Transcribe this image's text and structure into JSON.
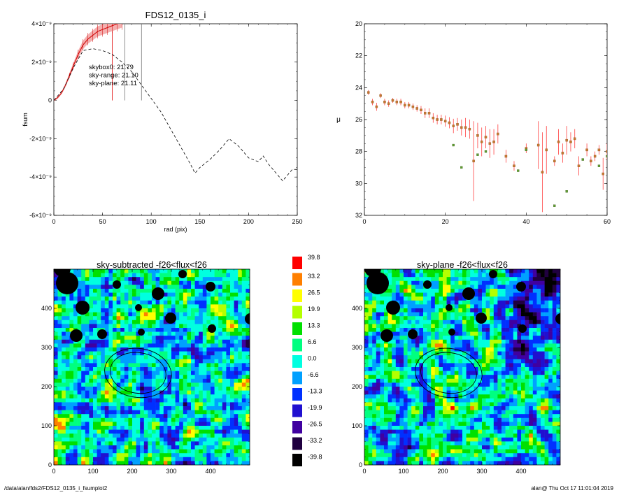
{
  "chart_data": [
    {
      "type": "line",
      "title": "FDS12_0135_i",
      "xlabel": "rad (pix)",
      "ylabel": "fsum",
      "xlim": [
        0,
        250
      ],
      "ylim": [
        -6e-09,
        4e-09
      ],
      "x_ticks": [
        "0",
        "50",
        "100",
        "150",
        "200",
        "250"
      ],
      "y_ticks": [
        "4×10⁻⁹",
        "2×10⁻⁹",
        "0",
        "-2×10⁻⁹",
        "-4×10⁻⁹",
        "-6×10⁻⁹"
      ],
      "annotations": [
        {
          "text": "skybox0: 21.79",
          "color": "#000000"
        },
        {
          "text": "sky-range: 21.10",
          "color": "#ff0000"
        },
        {
          "text": "sky-plane: 21.11",
          "color": "#00dd00"
        }
      ],
      "vertical_markers": {
        "red": [
          60
        ],
        "grey": [
          73,
          90
        ]
      },
      "series": [
        {
          "style": "solid-red-with-errorband",
          "x": [
            0,
            4,
            8,
            12,
            16,
            20,
            25,
            30,
            35,
            40,
            45,
            50,
            55,
            60,
            65,
            70
          ],
          "y": [
            0,
            1.5e-10,
            4e-10,
            8e-10,
            1.3e-09,
            1.8e-09,
            2.4e-09,
            2.9e-09,
            3.2e-09,
            3.4e-09,
            3.6e-09,
            3.7e-09,
            3.8e-09,
            3.9e-09,
            4e-09,
            4.1e-09
          ]
        },
        {
          "style": "dashed-black",
          "x": [
            0,
            10,
            20,
            30,
            40,
            50,
            60,
            70,
            80,
            90,
            100,
            110,
            120,
            130,
            140,
            145,
            150,
            160,
            170,
            180,
            190,
            200,
            210,
            215,
            220,
            230,
            235,
            240,
            245,
            250
          ],
          "y": [
            0,
            6e-10,
            1.7e-09,
            2.6e-09,
            2.7e-09,
            2.6e-09,
            2.4e-09,
            2e-09,
            1.5e-09,
            8e-10,
            1e-10,
            -6e-10,
            -1.5e-09,
            -2.4e-09,
            -3.3e-09,
            -3.8e-09,
            -3.5e-09,
            -3.1e-09,
            -2.6e-09,
            -2e-09,
            -2.4e-09,
            -3e-09,
            -3.2e-09,
            -2.9e-09,
            -3.3e-09,
            -3.9e-09,
            -4.2e-09,
            -3.9e-09,
            -3.6e-09,
            -3.6e-09
          ]
        }
      ]
    },
    {
      "type": "scatter",
      "xlabel": "",
      "ylabel": "μ",
      "xlim": [
        0,
        60
      ],
      "ylim": [
        32,
        20
      ],
      "x_ticks": [
        "0",
        "20",
        "40",
        "60"
      ],
      "y_ticks": [
        "20",
        "22",
        "24",
        "26",
        "28",
        "30",
        "32"
      ],
      "series": [
        {
          "style": "orange-points-red-errorbars",
          "x": [
            1,
            2,
            3,
            4,
            5,
            6,
            7,
            8,
            9,
            10,
            11,
            12,
            13,
            14,
            15,
            16,
            17,
            18,
            19,
            20,
            21,
            22,
            23,
            24,
            25,
            26,
            27,
            28,
            29,
            30,
            31,
            32,
            33,
            35,
            37,
            40,
            43,
            44,
            45,
            47,
            48,
            49,
            50,
            51,
            52,
            53,
            55,
            56,
            57,
            58,
            59,
            60
          ],
          "y": [
            24.3,
            24.9,
            25.2,
            24.5,
            24.9,
            25.0,
            24.8,
            24.9,
            24.9,
            25.1,
            25.1,
            25.2,
            25.3,
            25.4,
            25.6,
            25.6,
            25.9,
            26.0,
            26.0,
            26.1,
            26.2,
            26.4,
            26.3,
            26.5,
            26.5,
            26.6,
            28.6,
            27.0,
            27.4,
            27.1,
            27.5,
            27.4,
            26.9,
            28.3,
            28.9,
            27.8,
            27.6,
            29.3,
            27.9,
            28.6,
            27.4,
            28.1,
            27.3,
            27.4,
            27.2,
            28.9,
            27.9,
            28.6,
            28.3,
            27.9,
            29.4,
            28.0
          ],
          "yerr": [
            0.15,
            0.2,
            0.25,
            0.15,
            0.2,
            0.2,
            0.15,
            0.2,
            0.2,
            0.2,
            0.2,
            0.2,
            0.2,
            0.25,
            0.3,
            0.3,
            0.3,
            0.3,
            0.3,
            0.35,
            0.35,
            0.45,
            0.4,
            0.5,
            0.6,
            0.6,
            2.5,
            0.8,
            0.9,
            0.7,
            0.9,
            0.8,
            0.6,
            0.4,
            0.3,
            0.3,
            1.5,
            2.5,
            1.5,
            0.3,
            0.8,
            0.6,
            0.9,
            0.6,
            0.6,
            0.6,
            0.4,
            0.3,
            0.3,
            0.3,
            1.0,
            0.5
          ]
        },
        {
          "style": "green-points",
          "x": [
            22,
            24,
            28,
            30,
            38,
            40,
            47,
            50,
            54,
            58,
            60
          ],
          "y": [
            27.6,
            29.0,
            28.2,
            28.0,
            29.2,
            27.9,
            31.4,
            30.5,
            28.5,
            28.9,
            28.3
          ]
        }
      ]
    },
    {
      "type": "heatmap",
      "title": "sky-subtracted -f26<flux<f26",
      "xlim": [
        0,
        500
      ],
      "ylim": [
        0,
        500
      ],
      "x_ticks": [
        "0",
        "100",
        "200",
        "300",
        "400"
      ],
      "y_ticks": [
        "0",
        "100",
        "200",
        "300",
        "400"
      ]
    },
    {
      "type": "heatmap",
      "title": "sky-plane -f26<flux<f26",
      "xlim": [
        0,
        500
      ],
      "ylim": [
        0,
        500
      ],
      "x_ticks": [
        "0",
        "100",
        "200",
        "300",
        "400"
      ],
      "y_ticks": [
        "0",
        "100",
        "200",
        "300",
        "400"
      ]
    },
    {
      "type": "table",
      "colorbar_values": [
        "39.8",
        "33.2",
        "26.5",
        "19.9",
        "13.3",
        "6.6",
        "0.0",
        "-6.6",
        "-13.3",
        "-19.9",
        "-26.5",
        "-33.2",
        "-39.8"
      ],
      "colorbar_colors": [
        "#ff0000",
        "#ff7f00",
        "#ffff00",
        "#b4ff00",
        "#00e000",
        "#00ff80",
        "#00ffe0",
        "#00a0ff",
        "#0030ff",
        "#2010d0",
        "#4000a0",
        "#200040",
        "#000000"
      ]
    }
  ],
  "footer": {
    "left": "/data/alan/fds2/FDS12_0135_i_fsumplot2",
    "right": "alan@  Thu Oct 17 11:01:04 2019"
  }
}
